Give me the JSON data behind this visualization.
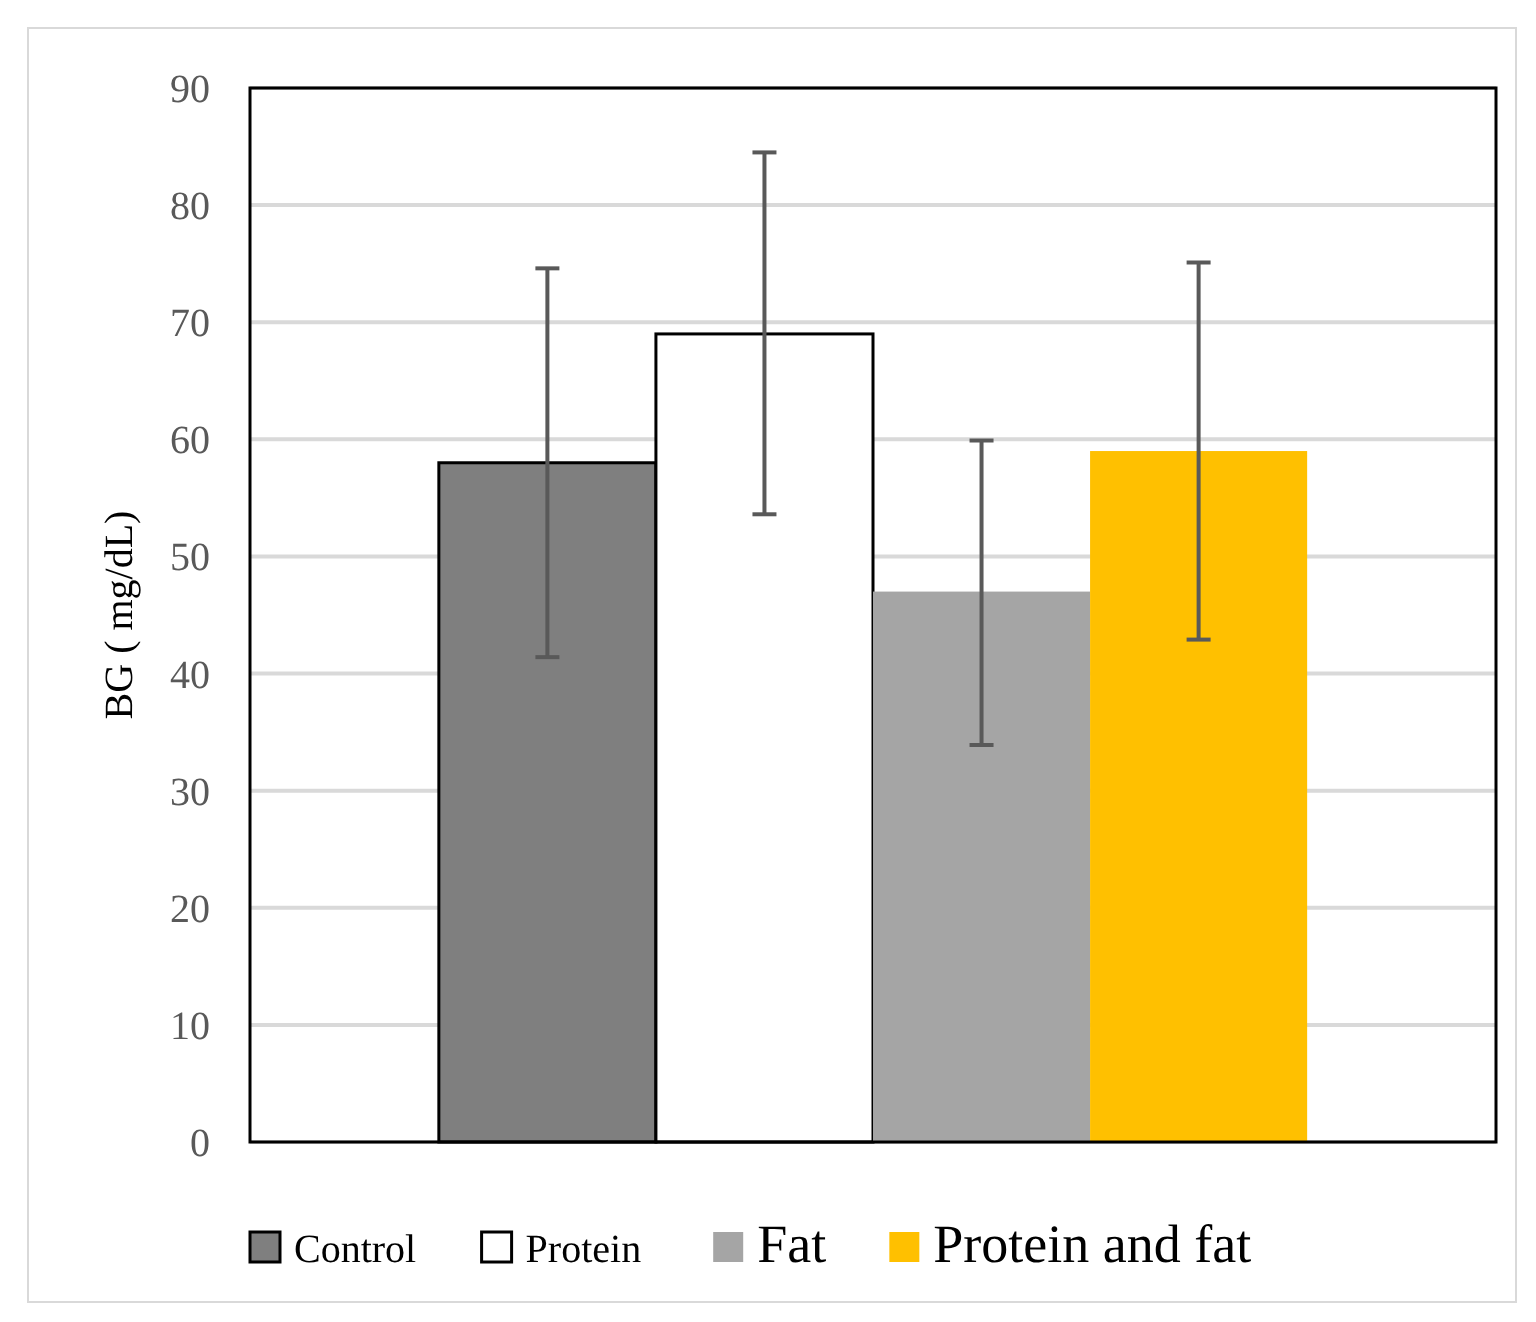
{
  "chart_data": {
    "type": "bar",
    "ylabel": "BG ( mg/dL)",
    "categories": [
      null
    ],
    "series": [
      {
        "name": "Control",
        "color": "#7f7f7f",
        "values": [
          58
        ],
        "errors": [
          [
            41.4,
            74.6
          ]
        ]
      },
      {
        "name": "Protein",
        "color": "#ffffff",
        "values": [
          69
        ],
        "errors": [
          [
            53.6,
            84.5
          ]
        ]
      },
      {
        "name": "Fat",
        "color": "#a5a5a5",
        "values": [
          47
        ],
        "errors": [
          [
            33.9,
            59.9
          ]
        ]
      },
      {
        "name": "Protein and fat",
        "color": "#ffc000",
        "values": [
          59
        ],
        "errors": [
          [
            42.9,
            75.1
          ]
        ]
      }
    ],
    "ylim": [
      0,
      90
    ],
    "yticks": [
      0,
      10,
      20,
      30,
      40,
      50,
      60,
      70,
      80,
      90
    ],
    "grid": "y",
    "legend": "bottom"
  }
}
